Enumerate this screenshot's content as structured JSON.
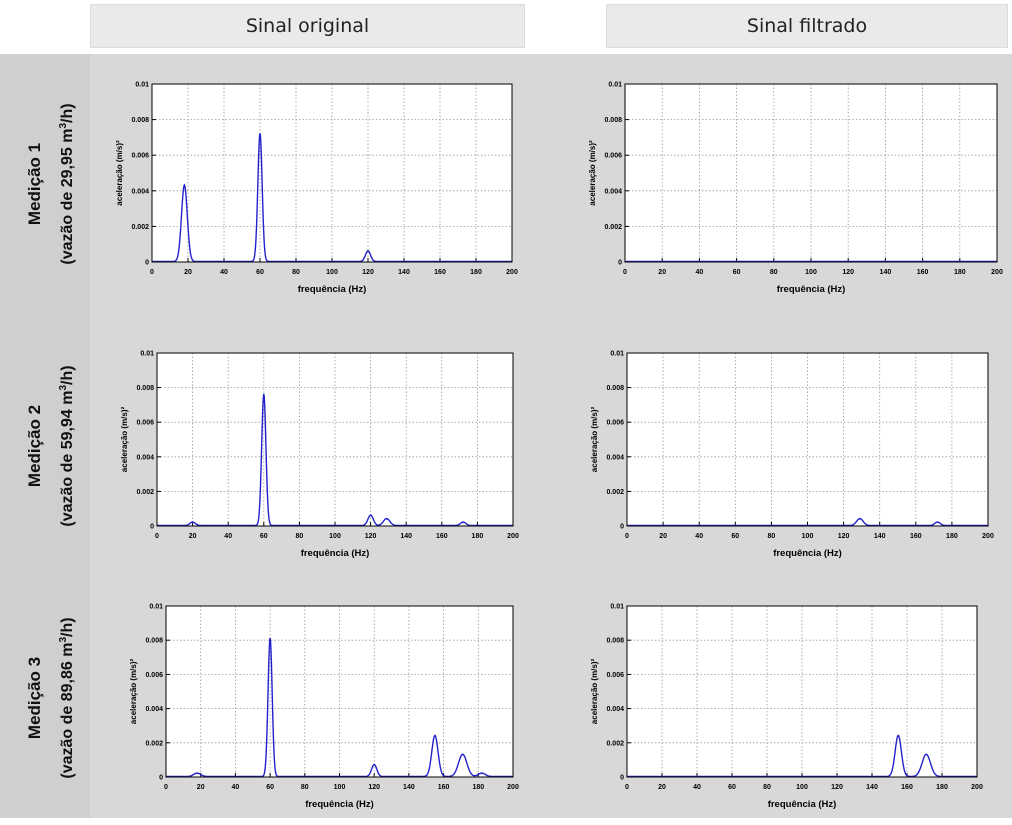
{
  "columns": [
    "Sinal original",
    "Sinal filtrado"
  ],
  "rows": [
    {
      "title": "Medição 1",
      "subtitle_pre": "(vazão de 29,95 m",
      "subtitle_sup": "3",
      "subtitle_post": "/h)"
    },
    {
      "title": "Medição 2",
      "subtitle_pre": "(vazão de 59,94 m",
      "subtitle_sup": "3",
      "subtitle_post": "/h)"
    },
    {
      "title": "Medição 3",
      "subtitle_pre": "(vazão de 89,86 m",
      "subtitle_sup": "3",
      "subtitle_post": "/h)"
    }
  ],
  "colors": {
    "line": "#2222cc",
    "grid": "#9a9a9a"
  },
  "chart_data": [
    {
      "type": "line",
      "row": 1,
      "column": "Sinal original",
      "xlabel": "frequência (Hz)",
      "ylabel": "aceleração (m/s)²",
      "xlim": [
        0,
        200
      ],
      "ylim": [
        0,
        0.01
      ],
      "xticks": [
        "0",
        "20",
        "40",
        "60",
        "80",
        "100",
        "120",
        "140",
        "160",
        "180",
        "200"
      ],
      "yticks": [
        "0",
        "0.002",
        "0.004",
        "0.006",
        "0.008",
        "0.01"
      ],
      "grid": true,
      "peaks": [
        {
          "x": 18,
          "y": 0.0043,
          "w": 1.6
        },
        {
          "x": 60,
          "y": 0.0072,
          "w": 1.2
        },
        {
          "x": 120,
          "y": 0.0006,
          "w": 1.4
        }
      ]
    },
    {
      "type": "line",
      "row": 1,
      "column": "Sinal filtrado",
      "xlabel": "frequência (Hz)",
      "ylabel": "aceleração (m/s)²",
      "xlim": [
        0,
        200
      ],
      "ylim": [
        0,
        0.01
      ],
      "xticks": [
        "0",
        "20",
        "40",
        "60",
        "80",
        "100",
        "120",
        "140",
        "160",
        "180",
        "200"
      ],
      "yticks": [
        "0",
        "0.002",
        "0.004",
        "0.006",
        "0.008",
        "0.01"
      ],
      "grid": true,
      "peaks": []
    },
    {
      "type": "line",
      "row": 2,
      "column": "Sinal original",
      "xlabel": "frequência (Hz)",
      "ylabel": "aceleração (m/s)²",
      "xlim": [
        0,
        200
      ],
      "ylim": [
        0,
        0.01
      ],
      "xticks": [
        "0",
        "20",
        "40",
        "60",
        "80",
        "100",
        "120",
        "140",
        "160",
        "180",
        "200"
      ],
      "yticks": [
        "0",
        "0.002",
        "0.004",
        "0.006",
        "0.008",
        "0.01"
      ],
      "grid": true,
      "peaks": [
        {
          "x": 20,
          "y": 0.0002,
          "w": 1.5
        },
        {
          "x": 60,
          "y": 0.0076,
          "w": 1.2
        },
        {
          "x": 120,
          "y": 0.0006,
          "w": 1.5
        },
        {
          "x": 129,
          "y": 0.0004,
          "w": 1.8
        },
        {
          "x": 172,
          "y": 0.0002,
          "w": 1.5
        }
      ]
    },
    {
      "type": "line",
      "row": 2,
      "column": "Sinal filtrado",
      "xlabel": "frequência (Hz)",
      "ylabel": "aceleração (m/s)²",
      "xlim": [
        0,
        200
      ],
      "ylim": [
        0,
        0.01
      ],
      "xticks": [
        "0",
        "20",
        "40",
        "60",
        "80",
        "100",
        "120",
        "140",
        "160",
        "180",
        "200"
      ],
      "yticks": [
        "0",
        "0.002",
        "0.004",
        "0.006",
        "0.008",
        "0.01"
      ],
      "grid": true,
      "peaks": [
        {
          "x": 129,
          "y": 0.0004,
          "w": 1.8
        },
        {
          "x": 172,
          "y": 0.0002,
          "w": 1.5
        }
      ]
    },
    {
      "type": "line",
      "row": 3,
      "column": "Sinal original",
      "xlabel": "frequência (Hz)",
      "ylabel": "aceleração (m/s)²",
      "xlim": [
        0,
        200
      ],
      "ylim": [
        0,
        0.01
      ],
      "xticks": [
        "0",
        "20",
        "40",
        "60",
        "80",
        "100",
        "120",
        "140",
        "160",
        "180",
        "200"
      ],
      "yticks": [
        "0",
        "0.002",
        "0.004",
        "0.006",
        "0.008",
        "0.01"
      ],
      "grid": true,
      "peaks": [
        {
          "x": 18,
          "y": 0.0002,
          "w": 2.0
        },
        {
          "x": 60,
          "y": 0.0081,
          "w": 1.2
        },
        {
          "x": 120,
          "y": 0.0007,
          "w": 1.5
        },
        {
          "x": 155,
          "y": 0.0024,
          "w": 1.8
        },
        {
          "x": 171,
          "y": 0.0013,
          "w": 2.4
        },
        {
          "x": 182,
          "y": 0.0002,
          "w": 2.0
        }
      ]
    },
    {
      "type": "line",
      "row": 3,
      "column": "Sinal filtrado",
      "xlabel": "frequência (Hz)",
      "ylabel": "aceleração (m/s)²",
      "xlim": [
        0,
        200
      ],
      "ylim": [
        0,
        0.01
      ],
      "xticks": [
        "0",
        "20",
        "40",
        "60",
        "80",
        "100",
        "120",
        "140",
        "160",
        "180",
        "200"
      ],
      "yticks": [
        "0",
        "0.002",
        "0.004",
        "0.006",
        "0.008",
        "0.01"
      ],
      "grid": true,
      "peaks": [
        {
          "x": 155,
          "y": 0.0024,
          "w": 1.8
        },
        {
          "x": 171,
          "y": 0.0013,
          "w": 2.4
        }
      ]
    }
  ]
}
